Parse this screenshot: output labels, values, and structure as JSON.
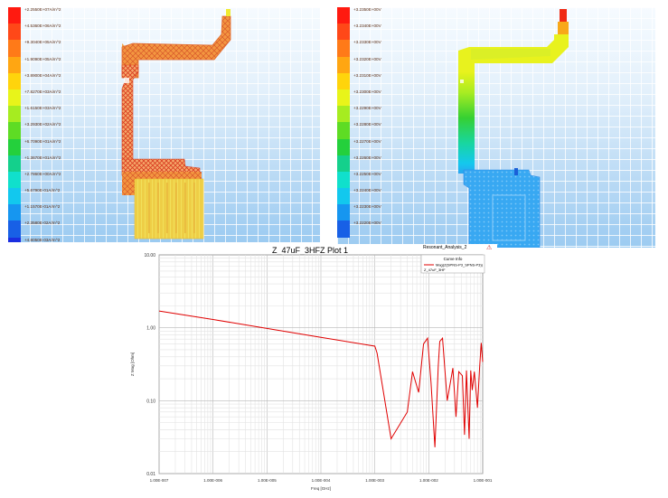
{
  "left_panel": {
    "legend": [
      {
        "label": "+2.2550E+07A/m^2",
        "color": "#ff1a10"
      },
      {
        "label": "+4.5360E+06A/m^2",
        "color": "#ff4818"
      },
      {
        "label": "+9.3040E+05A/m^2",
        "color": "#ff7a18"
      },
      {
        "label": "+1.9090E+05A/m^2",
        "color": "#ffa612"
      },
      {
        "label": "+3.8900E+04A/m^2",
        "color": "#ffd40c"
      },
      {
        "label": "+7.8270E+03A/m^2",
        "color": "#e8f41a"
      },
      {
        "label": "+1.6150E+03A/m^2",
        "color": "#a6ec20"
      },
      {
        "label": "+3.2930E+02A/m^2",
        "color": "#5edc24"
      },
      {
        "label": "+6.7090E+01A/m^2",
        "color": "#24d03c"
      },
      {
        "label": "+1.3670E+01A/m^2",
        "color": "#14d08c"
      },
      {
        "label": "+2.7860E+00A/m^2",
        "color": "#10e0cc"
      },
      {
        "label": "+5.6790E-01A/m^2",
        "color": "#12c8ee"
      },
      {
        "label": "+1.1570E-01A/m^2",
        "color": "#1696f0"
      },
      {
        "label": "+2.3580E-02A/m^2",
        "color": "#1860e6"
      },
      {
        "label": "+4.8050E-03A/m^2",
        "color": "#1a2ee0"
      }
    ]
  },
  "right_panel": {
    "legend": [
      {
        "label": "+3.2350E+00V",
        "color": "#ff1a10"
      },
      {
        "label": "+3.2340E+00V",
        "color": "#ff4818"
      },
      {
        "label": "+3.2330E+00V",
        "color": "#ff7a18"
      },
      {
        "label": "+3.2320E+00V",
        "color": "#ffa612"
      },
      {
        "label": "+3.2310E+00V",
        "color": "#ffd40c"
      },
      {
        "label": "+3.2300E+00V",
        "color": "#e8f41a"
      },
      {
        "label": "+3.2290E+00V",
        "color": "#a6ec20"
      },
      {
        "label": "+3.2280E+00V",
        "color": "#5edc24"
      },
      {
        "label": "+3.2270E+00V",
        "color": "#24d03c"
      },
      {
        "label": "+3.2260E+00V",
        "color": "#14d08c"
      },
      {
        "label": "+3.2250E+00V",
        "color": "#10e0cc"
      },
      {
        "label": "+3.2240E+00V",
        "color": "#12c8ee"
      },
      {
        "label": "+3.2230E+00V",
        "color": "#1696f0"
      },
      {
        "label": "+3.2220E+00V",
        "color": "#1860e6"
      }
    ]
  },
  "plot": {
    "title": "Z_47uF_3HFZ Plot 1",
    "subtitle": "Resonant_Analysis_2",
    "legend_header": "Curve Info",
    "legend_entry": "Mag(Z(SPNS-P3_SPNS-P3))",
    "legend_entry2": "Z_47uF_3HF",
    "curve_color": "#e00000",
    "chart_data": {
      "type": "line",
      "xscale": "log",
      "yscale": "log",
      "xlim": [
        1e-07,
        0.1
      ],
      "ylim": [
        0.01,
        10
      ],
      "xlabel": "Freq [GHz]",
      "ylabel": "Z Mag [Ohm]",
      "xticks": [
        "1.00E-007",
        "1.00E-006",
        "1.00E-005",
        "1.00E-004",
        "1.00E-003",
        "1.00E-002",
        "1.00E-001"
      ],
      "yticks": [
        "10.00",
        "1.00",
        "0.10",
        "0.01"
      ],
      "series": [
        {
          "name": "Mag(Z(SPNS-P3_SPNS-P3))",
          "x": [
            1e-07,
            1e-06,
            1e-05,
            0.0001,
            0.001,
            0.0011,
            0.002,
            0.004,
            0.005,
            0.0065,
            0.008,
            0.0095,
            0.011,
            0.013,
            0.015,
            0.016,
            0.018,
            0.022,
            0.028,
            0.032,
            0.036,
            0.042,
            0.046,
            0.05,
            0.056,
            0.06,
            0.064,
            0.07,
            0.08,
            0.088,
            0.094,
            0.1
          ],
          "y": [
            1.7,
            1.3,
            0.98,
            0.74,
            0.56,
            0.45,
            0.03,
            0.07,
            0.25,
            0.13,
            0.6,
            0.72,
            0.18,
            0.023,
            0.3,
            0.65,
            0.72,
            0.1,
            0.28,
            0.06,
            0.25,
            0.22,
            0.034,
            0.26,
            0.03,
            0.26,
            0.14,
            0.25,
            0.08,
            0.3,
            0.62,
            0.34
          ]
        }
      ]
    }
  }
}
